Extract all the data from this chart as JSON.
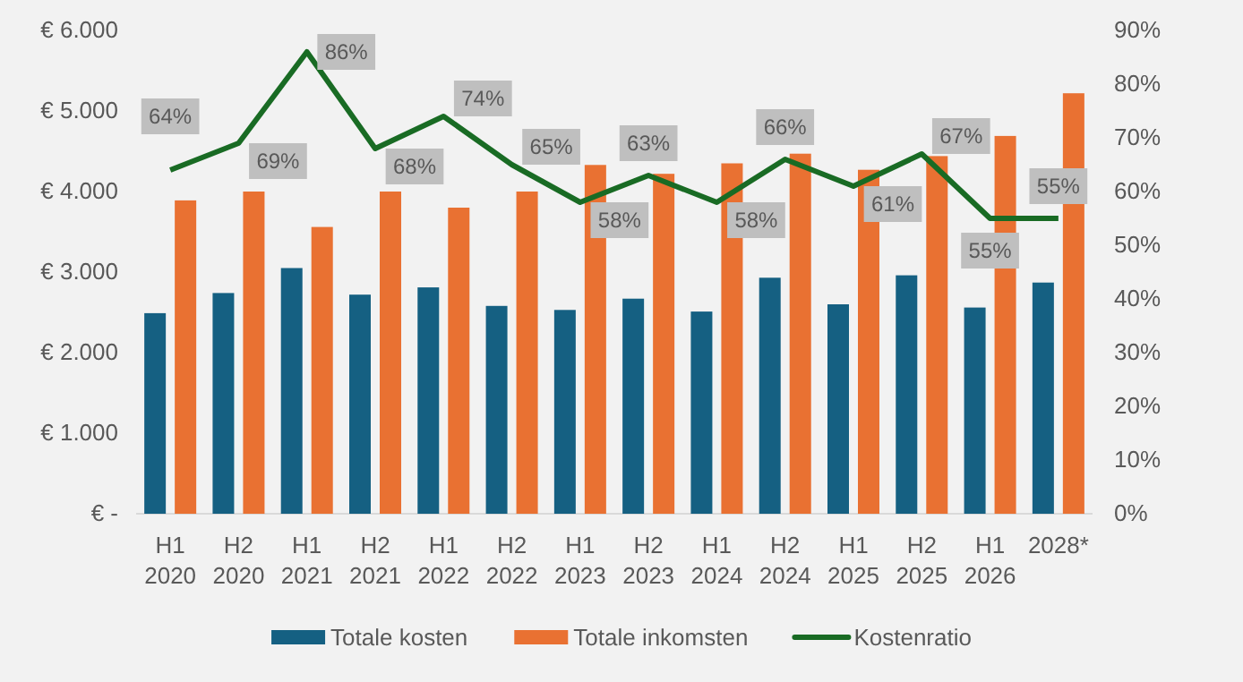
{
  "chart_data": {
    "type": "bar",
    "categories": [
      "H1 2020",
      "H2 2020",
      "H1 2021",
      "H2 2021",
      "H1 2022",
      "H2 2022",
      "H1 2023",
      "H2 2023",
      "H1 2024",
      "H2 2024",
      "H1 2025",
      "H2 2025",
      "H1 2026",
      "2028*"
    ],
    "series": [
      {
        "name": "Totale kosten",
        "color": "#156082",
        "values": [
          2490,
          2740,
          3050,
          2720,
          2810,
          2580,
          2530,
          2670,
          2510,
          2930,
          2600,
          2960,
          2560,
          2870
        ]
      },
      {
        "name": "Totale inkomsten",
        "color": "#e97132",
        "values": [
          3890,
          4000,
          3560,
          4000,
          3800,
          4000,
          4330,
          4220,
          4350,
          4470,
          4270,
          4440,
          4690,
          5220
        ]
      },
      {
        "name": "Kostenratio",
        "type": "line",
        "axis": "y2",
        "color": "#196b24",
        "values": [
          64,
          69,
          86,
          68,
          74,
          65,
          58,
          63,
          58,
          66,
          61,
          67,
          55,
          55
        ],
        "value_labels": [
          "64%",
          "69%",
          "86%",
          "68%",
          "74%",
          "65%",
          "58%",
          "63%",
          "58%",
          "66%",
          "61%",
          "67%",
          "55%",
          "55%"
        ]
      }
    ],
    "ylim": [
      0,
      6000
    ],
    "yticks": [
      {
        "value": 0,
        "label": "€ -"
      },
      {
        "value": 1000,
        "label": "€ 1.000"
      },
      {
        "value": 2000,
        "label": "€ 2.000"
      },
      {
        "value": 3000,
        "label": "€ 3.000"
      },
      {
        "value": 4000,
        "label": "€ 4.000"
      },
      {
        "value": 5000,
        "label": "€ 5.000"
      },
      {
        "value": 6000,
        "label": "€ 6.000"
      }
    ],
    "y2lim": [
      0,
      90
    ],
    "y2ticks": [
      {
        "value": 0,
        "label": "0%"
      },
      {
        "value": 10,
        "label": "10%"
      },
      {
        "value": 20,
        "label": "20%"
      },
      {
        "value": 30,
        "label": "30%"
      },
      {
        "value": 40,
        "label": "40%"
      },
      {
        "value": 50,
        "label": "50%"
      },
      {
        "value": 60,
        "label": "60%"
      },
      {
        "value": 70,
        "label": "70%"
      },
      {
        "value": 80,
        "label": "80%"
      },
      {
        "value": 90,
        "label": "90%"
      }
    ],
    "legend": "bottom",
    "grid": false
  }
}
